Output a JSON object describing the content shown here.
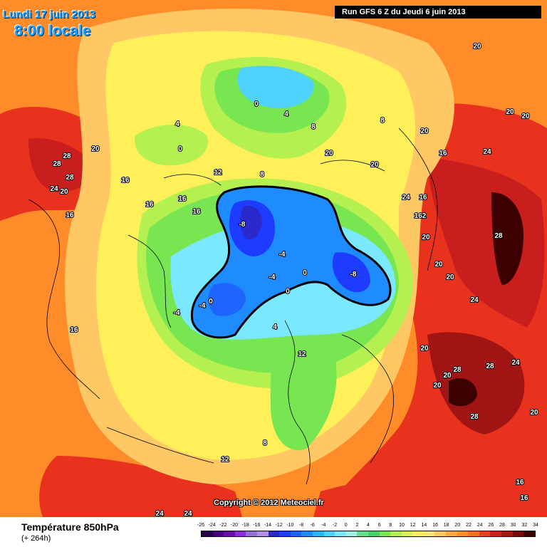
{
  "header": {
    "date": "Lundi 17 juin 2013",
    "time": "8:00 locale",
    "run": "Run GFS 6 Z du Jeudi 6 juin 2013"
  },
  "footer": {
    "parameter": "Température 850hPa",
    "lead_time": "(+ 264h)",
    "copyright": "Copyright © 2012 Meteociel.fr"
  },
  "legend": {
    "ticks": [
      "-26",
      "-24",
      "-22",
      "-20",
      "-18",
      "-16",
      "-14",
      "-12",
      "-10",
      "-8",
      "-6",
      "-4",
      "-2",
      "0",
      "2",
      "4",
      "6",
      "8",
      "10",
      "12",
      "14",
      "16",
      "18",
      "20",
      "22",
      "24",
      "26",
      "28",
      "30",
      "32",
      "34"
    ],
    "colors": [
      "#2a004a",
      "#4b0082",
      "#6a0dad",
      "#8a2be2",
      "#9370db",
      "#b38ee8",
      "#2a2acc",
      "#1e3cff",
      "#1e64ff",
      "#1e8cff",
      "#28b4ff",
      "#50d2ff",
      "#7ae8ff",
      "#a0f0e6",
      "#64e08c",
      "#46d264",
      "#78e650",
      "#b4f050",
      "#dcf050",
      "#fff05a",
      "#ffe17a",
      "#ffc864",
      "#ffa83c",
      "#ff8c28",
      "#ff6e1e",
      "#f03c1e",
      "#d21e1e",
      "#aa1414",
      "#780a0a",
      "#3c0000"
    ]
  },
  "map_labels": [
    {
      "text": "20",
      "kind": "temperature"
    },
    {
      "text": "20",
      "kind": "temperature"
    },
    {
      "text": "20",
      "kind": "temperature"
    },
    {
      "text": "20",
      "kind": "temperature"
    },
    {
      "text": "20",
      "kind": "temperature"
    },
    {
      "text": "20",
      "kind": "temperature"
    },
    {
      "text": "16",
      "kind": "temperature"
    },
    {
      "text": "24",
      "kind": "temperature"
    },
    {
      "text": "24",
      "kind": "temperature"
    },
    {
      "text": "16",
      "kind": "temperature"
    },
    {
      "text": "162",
      "kind": "temperature"
    },
    {
      "text": "20",
      "kind": "temperature"
    },
    {
      "text": "28",
      "kind": "temperature"
    },
    {
      "text": "20",
      "kind": "temperature"
    },
    {
      "text": "20",
      "kind": "temperature"
    },
    {
      "text": "24",
      "kind": "temperature"
    },
    {
      "text": "28",
      "kind": "temperature"
    },
    {
      "text": "28",
      "kind": "temperature"
    },
    {
      "text": "24",
      "kind": "temperature"
    },
    {
      "text": "20",
      "kind": "temperature"
    },
    {
      "text": "20",
      "kind": "temperature"
    },
    {
      "text": "20",
      "kind": "temperature"
    },
    {
      "text": "28",
      "kind": "temperature"
    },
    {
      "text": "20",
      "kind": "temperature"
    },
    {
      "text": "16",
      "kind": "temperature"
    },
    {
      "text": "16",
      "kind": "temperature"
    },
    {
      "text": "28",
      "kind": "temperature"
    },
    {
      "text": "28",
      "kind": "temperature"
    },
    {
      "text": "28",
      "kind": "temperature"
    },
    {
      "text": "20",
      "kind": "temperature"
    },
    {
      "text": "24",
      "kind": "temperature"
    },
    {
      "text": "20",
      "kind": "temperature"
    },
    {
      "text": "16",
      "kind": "temperature"
    },
    {
      "text": "16",
      "kind": "temperature"
    },
    {
      "text": "16",
      "kind": "temperature"
    },
    {
      "text": "16",
      "kind": "temperature"
    },
    {
      "text": "16",
      "kind": "temperature"
    },
    {
      "text": "24",
      "kind": "temperature"
    },
    {
      "text": "24",
      "kind": "temperature"
    },
    {
      "text": "0",
      "kind": "temperature"
    },
    {
      "text": "4",
      "kind": "temperature"
    },
    {
      "text": "4",
      "kind": "temperature"
    },
    {
      "text": "0",
      "kind": "temperature"
    },
    {
      "text": "8",
      "kind": "temperature"
    },
    {
      "text": "8",
      "kind": "temperature"
    },
    {
      "text": "8",
      "kind": "temperature"
    },
    {
      "text": "12",
      "kind": "temperature"
    },
    {
      "text": "-8",
      "kind": "temperature"
    },
    {
      "text": "-4",
      "kind": "temperature"
    },
    {
      "text": "-4",
      "kind": "temperature"
    },
    {
      "text": "-8",
      "kind": "temperature"
    },
    {
      "text": "0",
      "kind": "temperature"
    },
    {
      "text": "-4",
      "kind": "temperature"
    },
    {
      "text": "0",
      "kind": "temperature"
    },
    {
      "text": "-4",
      "kind": "temperature"
    },
    {
      "text": "0",
      "kind": "temperature"
    },
    {
      "text": "4",
      "kind": "temperature"
    },
    {
      "text": "12",
      "kind": "temperature"
    },
    {
      "text": "8",
      "kind": "temperature"
    },
    {
      "text": "12",
      "kind": "temperature"
    },
    {
      "text": "16",
      "kind": "temperature"
    }
  ]
}
